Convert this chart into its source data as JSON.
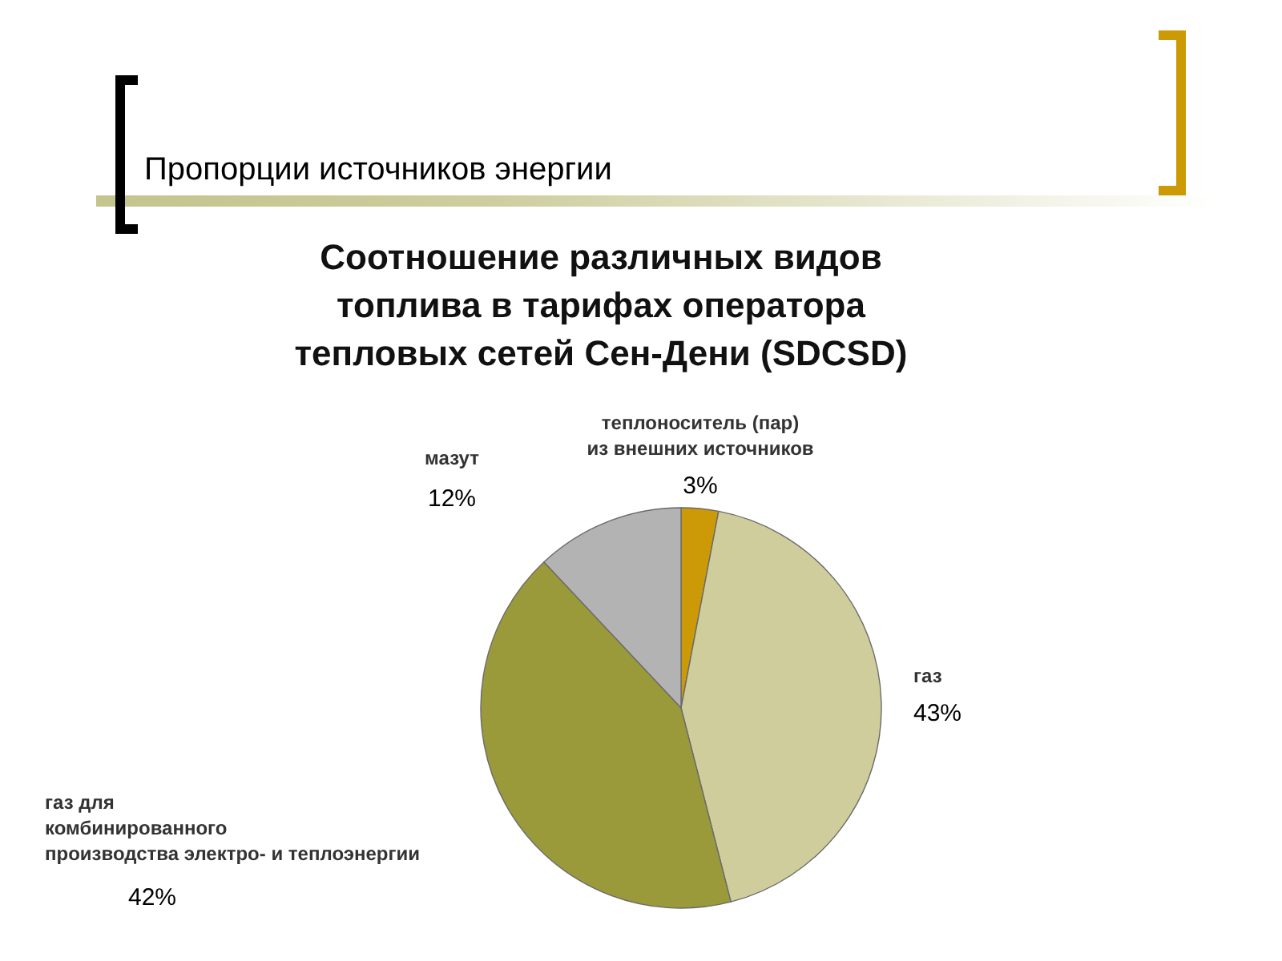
{
  "chart_data": {
    "type": "pie",
    "title": "Пропорции источников энергии",
    "subtitle": "Соотношение различных видов топлива в тарифах оператора тепловых сетей Сен-Дени (SDCSD)",
    "categories": [
      "теплоноситель (пар) из внешних источников",
      "газ",
      "газ для комбинированного производства электро- и теплоэнергии",
      "мазут"
    ],
    "values": [
      3,
      43,
      42,
      12
    ],
    "colors": [
      "#cc9a06",
      "#cfcd9b",
      "#9a9a3a",
      "#b3b3b3"
    ],
    "value_labels": [
      "3%",
      "43%",
      "42%",
      "12%"
    ]
  }
}
